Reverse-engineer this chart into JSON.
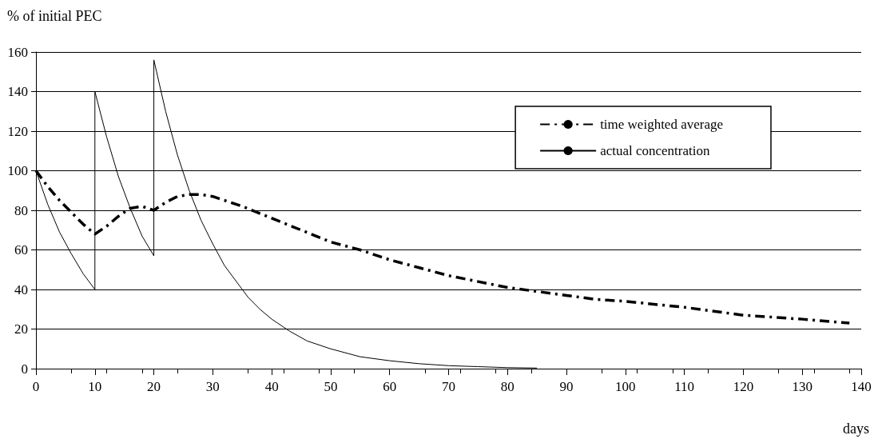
{
  "chart_data": {
    "type": "line",
    "ylabel": "% of initial PEC",
    "xlabel": "days",
    "xlim": [
      0,
      140
    ],
    "xticks": [
      0,
      10,
      20,
      30,
      40,
      50,
      60,
      70,
      80,
      90,
      100,
      110,
      120,
      130,
      140
    ],
    "ylim": [
      0,
      160
    ],
    "yticks": [
      0,
      20,
      40,
      60,
      80,
      100,
      120,
      140,
      160
    ],
    "grid": "y",
    "legend": "top right",
    "marker": "none",
    "series": [
      {
        "name": "time weighted average",
        "color": "#000000",
        "line_style": "dashed",
        "x": [
          0,
          2,
          4,
          6,
          8,
          10,
          12,
          14,
          16,
          18,
          20,
          22,
          24,
          26,
          28,
          30,
          35,
          40,
          45,
          50,
          55,
          60,
          65,
          70,
          75,
          80,
          85,
          90,
          95,
          100,
          110,
          120,
          130,
          138
        ],
        "values": [
          100,
          92,
          85,
          79,
          73,
          68,
          72,
          77,
          81,
          82,
          80,
          84,
          87,
          88,
          88,
          87,
          82,
          76,
          70,
          64,
          60,
          55,
          51,
          47,
          44,
          41,
          39,
          37,
          35,
          34,
          31,
          27,
          25,
          23
        ]
      },
      {
        "name": "actual concentration",
        "color": "#000000",
        "line_style": "solid",
        "x": [
          0,
          2,
          4,
          6,
          8,
          10,
          10,
          12,
          14,
          16,
          18,
          20,
          20,
          22,
          24,
          26,
          28,
          30,
          32,
          34,
          36,
          38,
          40,
          43,
          46,
          50,
          55,
          60,
          65,
          70,
          75,
          80,
          85
        ],
        "values": [
          100,
          83,
          69,
          58,
          48,
          40,
          140,
          117,
          97,
          81,
          67,
          57,
          156,
          130,
          108,
          90,
          75,
          63,
          52,
          44,
          36,
          30,
          25,
          19,
          14,
          10,
          6,
          4,
          2.5,
          1.5,
          1,
          0.5,
          0.3
        ]
      }
    ]
  }
}
